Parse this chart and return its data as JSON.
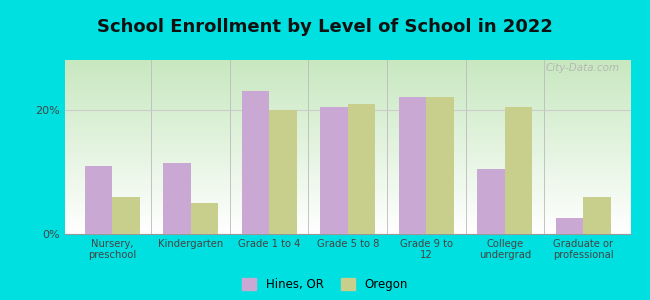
{
  "title": "School Enrollment by Level of School in 2022",
  "categories": [
    "Nursery,\npreschool",
    "Kindergarten",
    "Grade 1 to 4",
    "Grade 5 to 8",
    "Grade 9 to\n12",
    "College\nundergrad",
    "Graduate or\nprofessional"
  ],
  "hines_values": [
    11,
    11.5,
    23,
    20.5,
    22,
    10.5,
    2.5
  ],
  "oregon_values": [
    6,
    5,
    20,
    21,
    22,
    20.5,
    6
  ],
  "hines_color": "#c9a8d4",
  "oregon_color": "#c8cf8c",
  "background_color": "#00e0e0",
  "ylabel_ticks": [
    "0%",
    "20%"
  ],
  "yticks": [
    0,
    20
  ],
  "ylim": [
    0,
    28
  ],
  "legend_labels": [
    "Hines, OR",
    "Oregon"
  ],
  "title_fontsize": 13,
  "bar_width": 0.35,
  "watermark_text": "City-Data.com"
}
